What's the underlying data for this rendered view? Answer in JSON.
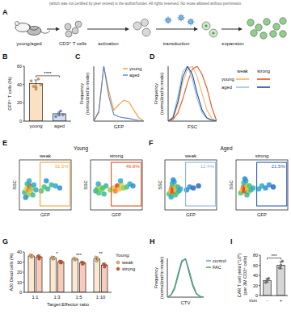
{
  "header": "(which was not certified by peer review) is the author/funder. All rights reserved. No reuse allowed without permission.",
  "schematic": {
    "panel": "A",
    "source": "young/aged",
    "cells": "CD3⁺ T cells",
    "steps": [
      "activation",
      "transduction",
      "expansion"
    ]
  },
  "chart_data": [
    {
      "panel": "B",
      "type": "bar",
      "categories": [
        "young",
        "aged"
      ],
      "values": [
        41,
        8
      ],
      "errors": [
        4,
        2
      ],
      "points": [
        [
          44,
          38,
          35,
          46,
          40
        ],
        [
          5,
          8,
          11,
          7
        ]
      ],
      "colors": [
        "#f39a35",
        "#6f93d4"
      ],
      "ylabel": "GFP⁺ T cells (%)",
      "ylim": [
        0,
        60
      ],
      "yticks": [
        0,
        20,
        40,
        60
      ],
      "significance": "****"
    },
    {
      "panel": "C",
      "type": "line",
      "xlabel": "GFP",
      "ylabel": [
        "Frequency",
        "(normalized to mode)"
      ],
      "x": [
        0,
        1,
        2,
        3,
        4,
        5,
        6,
        7,
        8,
        9,
        10
      ],
      "xlim": [
        0,
        10
      ],
      "ylim": [
        0,
        100
      ],
      "tick_labels": false,
      "legend": "top-right",
      "series": [
        {
          "name": "young",
          "color": "#f39a35",
          "values": [
            0,
            15,
            100,
            55,
            20,
            30,
            38,
            35,
            20,
            6,
            0
          ]
        },
        {
          "name": "aged",
          "color": "#5b7fc4",
          "values": [
            0,
            18,
            100,
            45,
            12,
            8,
            6,
            5,
            3,
            1,
            0
          ]
        }
      ]
    },
    {
      "panel": "D",
      "type": "line",
      "xlabel": "FSC",
      "ylabel": [
        "Frequency",
        "(normalized to mode)"
      ],
      "x": [
        0,
        1,
        2,
        3,
        4,
        5,
        6,
        7,
        8,
        9,
        10
      ],
      "xlim": [
        0,
        10
      ],
      "ylim": [
        0,
        100
      ],
      "tick_labels": false,
      "legend": "right",
      "series": [
        {
          "name": "young",
          "group": "weak",
          "color": "#f7b267",
          "values": [
            0,
            5,
            30,
            70,
            95,
            100,
            80,
            50,
            20,
            5,
            0
          ]
        },
        {
          "name": "young",
          "group": "strong",
          "color": "#e8541e",
          "values": [
            0,
            3,
            15,
            40,
            70,
            95,
            100,
            85,
            60,
            25,
            0
          ]
        },
        {
          "name": "aged",
          "group": "weak",
          "color": "#9cc0ea",
          "values": [
            0,
            8,
            45,
            90,
            100,
            75,
            40,
            15,
            5,
            1,
            0
          ]
        },
        {
          "name": "aged",
          "group": "strong",
          "color": "#1f4e9e",
          "values": [
            0,
            6,
            35,
            80,
            100,
            85,
            50,
            20,
            6,
            2,
            0
          ]
        }
      ]
    },
    {
      "panel": "E",
      "title": "Young",
      "subtitle": "weak",
      "type": "scatter",
      "xlabel": "GFP",
      "ylabel": "SSC",
      "xlim": [
        0,
        100
      ],
      "ylim": [
        0,
        100
      ],
      "tick_labels": false,
      "color": "#f5a340",
      "x": [
        10,
        13,
        16,
        18,
        20,
        22,
        24,
        15,
        19,
        26,
        28,
        12,
        32,
        42,
        48,
        55,
        62,
        70,
        78,
        52
      ],
      "values": [
        35,
        42,
        30,
        40,
        48,
        36,
        44,
        52,
        58,
        30,
        50,
        25,
        40,
        38,
        46,
        42,
        50,
        48,
        44,
        58
      ],
      "density": [
        0.4,
        0.7,
        0.6,
        0.9,
        1,
        0.8,
        0.6,
        0.4,
        0.3,
        0.4,
        0.3,
        0.2,
        0.3,
        0.5,
        0.5,
        0.4,
        0.4,
        0.3,
        0.2,
        0.2
      ],
      "gate": {
        "x": [
          40,
          98
        ],
        "y": [
          8,
          95
        ],
        "value": 31.5,
        "value_label": "31.5%"
      }
    },
    {
      "subtitle": "strong",
      "type": "scatter",
      "xlabel": "GFP",
      "ylabel": "SSC",
      "xlim": [
        0,
        100
      ],
      "ylim": [
        0,
        100
      ],
      "tick_labels": false,
      "color": "#e8541e",
      "x": [
        10,
        13,
        16,
        18,
        20,
        24,
        15,
        26,
        30,
        38,
        44,
        48,
        52,
        56,
        60,
        64,
        70,
        76,
        82,
        58
      ],
      "values": [
        38,
        42,
        34,
        46,
        40,
        44,
        52,
        32,
        48,
        40,
        44,
        38,
        48,
        42,
        50,
        44,
        46,
        52,
        48,
        58
      ],
      "density": [
        0.3,
        0.5,
        0.5,
        0.7,
        0.6,
        0.5,
        0.3,
        0.4,
        0.4,
        0.6,
        0.8,
        0.9,
        1,
        0.8,
        0.7,
        0.6,
        0.5,
        0.3,
        0.2,
        0.3
      ],
      "gate": {
        "x": [
          40,
          98
        ],
        "y": [
          8,
          95
        ],
        "value": 49.8,
        "value_label": "49.8%"
      }
    },
    {
      "panel": "F",
      "title": "Aged",
      "subtitle": "weak",
      "type": "scatter",
      "xlabel": "GFP",
      "ylabel": "SSC",
      "xlim": [
        0,
        100
      ],
      "ylim": [
        0,
        100
      ],
      "tick_labels": false,
      "color": "#8fb3e0",
      "x": [
        8,
        11,
        13,
        15,
        17,
        19,
        21,
        23,
        14,
        18,
        25,
        27,
        12,
        30,
        42,
        48,
        55,
        65,
        20,
        16
      ],
      "values": [
        32,
        38,
        44,
        36,
        42,
        48,
        40,
        34,
        52,
        56,
        46,
        38,
        26,
        42,
        40,
        46,
        44,
        48,
        30,
        60
      ],
      "density": [
        0.5,
        0.8,
        0.9,
        1,
        1,
        0.8,
        0.7,
        0.6,
        0.4,
        0.3,
        0.4,
        0.3,
        0.3,
        0.3,
        0.2,
        0.2,
        0.1,
        0.1,
        0.5,
        0.2
      ],
      "gate": {
        "x": [
          40,
          98
        ],
        "y": [
          8,
          95
        ],
        "value": 12.4,
        "value_label": "12.4%"
      }
    },
    {
      "subtitle": "strong",
      "type": "scatter",
      "xlabel": "GFP",
      "ylabel": "SSC",
      "xlim": [
        0,
        100
      ],
      "ylim": [
        0,
        100
      ],
      "tick_labels": false,
      "color": "#2f5fb0",
      "x": [
        9,
        12,
        14,
        16,
        18,
        20,
        22,
        24,
        15,
        19,
        26,
        29,
        33,
        44,
        50,
        57,
        64,
        72,
        21,
        17
      ],
      "values": [
        34,
        40,
        46,
        38,
        44,
        50,
        42,
        36,
        54,
        58,
        48,
        40,
        44,
        42,
        48,
        44,
        50,
        46,
        30,
        62
      ],
      "density": [
        0.5,
        0.8,
        0.9,
        1,
        1,
        0.8,
        0.7,
        0.6,
        0.4,
        0.3,
        0.5,
        0.4,
        0.3,
        0.3,
        0.3,
        0.2,
        0.2,
        0.1,
        0.4,
        0.2
      ],
      "gate": {
        "x": [
          40,
          98
        ],
        "y": [
          8,
          95
        ],
        "value": 21.5,
        "value_label": "21.5%"
      }
    },
    {
      "panel": "G",
      "type": "bar",
      "categories": [
        "1:1",
        "1:3",
        "1:5",
        "1:10"
      ],
      "xlabel": "Target:Effector ratio",
      "ylabel": "A20 Dead cells (%)",
      "ylim": [
        0,
        40
      ],
      "yticks": [
        0,
        10,
        20,
        30,
        40
      ],
      "legend": "right",
      "legend_title": "Young:",
      "significance": [
        null,
        "*",
        "***",
        "**"
      ],
      "series": [
        {
          "name": "weak",
          "color": "#f5b461",
          "values": [
            36,
            34,
            33,
            33
          ],
          "errors": [
            1.5,
            1.5,
            1,
            2
          ],
          "points": [
            [
              37,
              35,
              36
            ],
            [
              35,
              33,
              34
            ],
            [
              34,
              32,
              33
            ],
            [
              35,
              31,
              33
            ]
          ]
        },
        {
          "name": "strong",
          "color": "#e8541e",
          "values": [
            35,
            30,
            29,
            27
          ],
          "errors": [
            2,
            1.5,
            1.5,
            2
          ],
          "points": [
            [
              36,
              33,
              35
            ],
            [
              31,
              29,
              30
            ],
            [
              30,
              28,
              29
            ],
            [
              28,
              25,
              27
            ]
          ]
        }
      ]
    },
    {
      "panel": "H",
      "type": "line",
      "xlabel": "CTV",
      "ylabel": [
        "Frequency",
        "(normalized to mode)"
      ],
      "x": [
        0,
        1,
        2,
        3,
        4,
        5,
        6,
        7,
        8,
        9,
        10
      ],
      "xlim": [
        0,
        10
      ],
      "ylim": [
        0,
        100
      ],
      "tick_labels": false,
      "legend": "right",
      "series": [
        {
          "name": "control",
          "color": "#6d8fd0",
          "values": [
            0,
            5,
            20,
            55,
            90,
            100,
            70,
            35,
            10,
            2,
            0
          ]
        },
        {
          "name": "FAC",
          "color": "#3f9e4a",
          "values": [
            0,
            6,
            26,
            62,
            95,
            98,
            62,
            28,
            8,
            2,
            0
          ]
        }
      ]
    },
    {
      "panel": "I",
      "type": "bar",
      "categories": [
        "-",
        "+"
      ],
      "xlabel": "iron",
      "values": [
        30,
        60
      ],
      "errors": [
        4,
        7
      ],
      "points": [
        [
          26,
          30,
          34
        ],
        [
          55,
          60,
          68
        ]
      ],
      "colors": [
        "#777777",
        "#777777"
      ],
      "ylabel": [
        "CAR T cell yield (*10⁶)",
        "(per 3M CD3⁺ cells)"
      ],
      "ylim": [
        0,
        80
      ],
      "yticks": [
        0,
        20,
        40,
        60,
        80
      ],
      "significance": "***"
    }
  ]
}
